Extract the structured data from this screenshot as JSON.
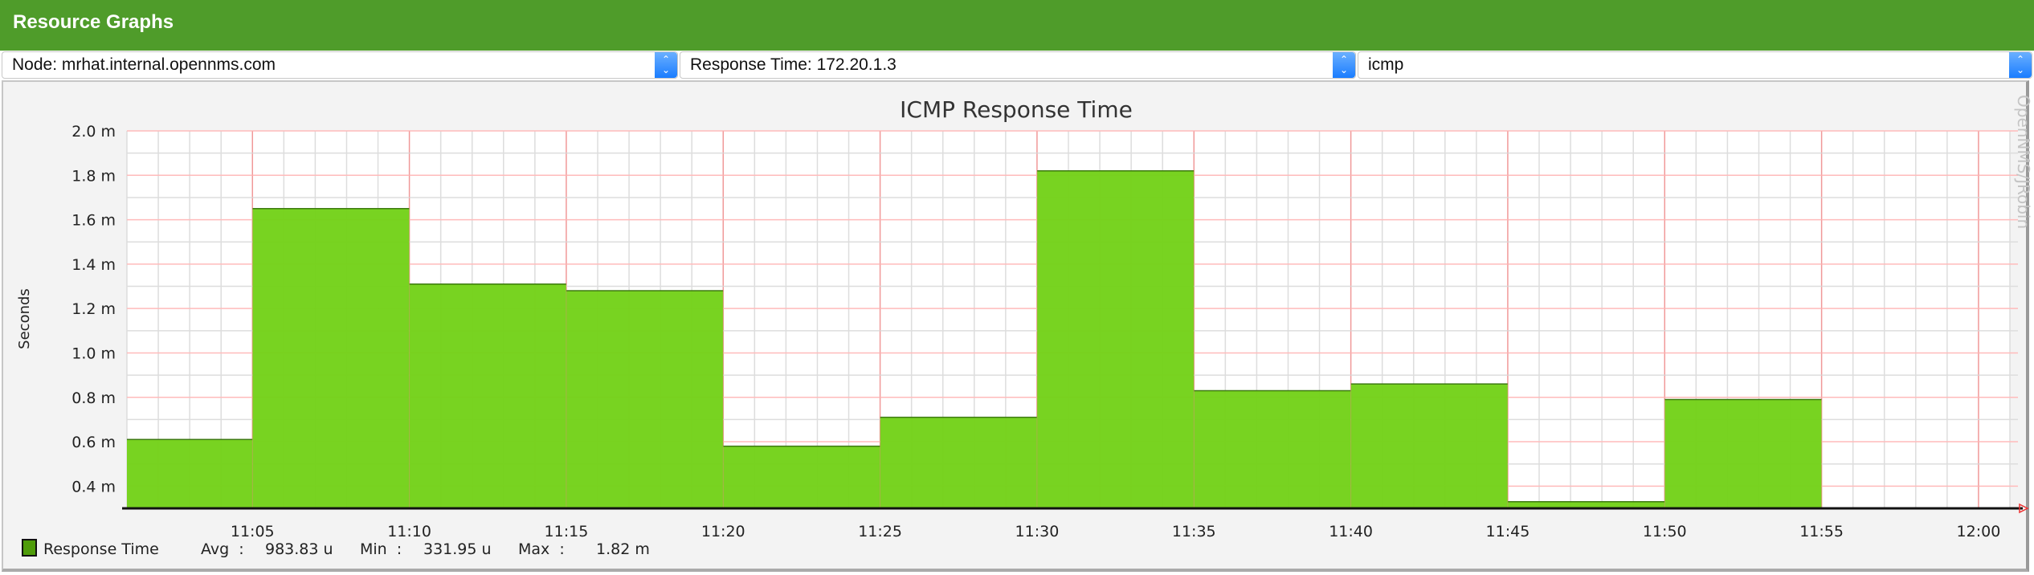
{
  "header": {
    "title": "Resource Graphs"
  },
  "selects": [
    {
      "value": "Node: mrhat.internal.opennms.com"
    },
    {
      "value": "Response Time: 172.20.1.3"
    },
    {
      "value": "icmp"
    }
  ],
  "watermark": "OpenNMS/JRobin",
  "chart_data": {
    "type": "area",
    "title": "ICMP Response Time",
    "ylabel": "Seconds",
    "xlabel": "",
    "ylim": [
      0.3,
      2.0
    ],
    "y_unit": "m",
    "yticks": [
      "0.4 m",
      "0.6 m",
      "0.8 m",
      "1.0 m",
      "1.2 m",
      "1.4 m",
      "1.6 m",
      "1.8 m",
      "2.0 m"
    ],
    "ytick_values": [
      0.4,
      0.6,
      0.8,
      1.0,
      1.2,
      1.4,
      1.6,
      1.8,
      2.0
    ],
    "xlim": [
      "11:01",
      "12:01"
    ],
    "xticks": [
      "11:05",
      "11:10",
      "11:15",
      "11:20",
      "11:25",
      "11:30",
      "11:35",
      "11:40",
      "11:45",
      "11:50",
      "11:55",
      "12:00"
    ],
    "grid": true,
    "series": [
      {
        "name": "Response Time",
        "color": "#74d21a",
        "steps": [
          {
            "start": "11:01",
            "end": "11:05",
            "value": 0.61
          },
          {
            "start": "11:05",
            "end": "11:10",
            "value": 1.65
          },
          {
            "start": "11:10",
            "end": "11:15",
            "value": 1.31
          },
          {
            "start": "11:15",
            "end": "11:20",
            "value": 1.28
          },
          {
            "start": "11:20",
            "end": "11:25",
            "value": 0.58
          },
          {
            "start": "11:25",
            "end": "11:30",
            "value": 0.71
          },
          {
            "start": "11:30",
            "end": "11:35",
            "value": 1.82
          },
          {
            "start": "11:35",
            "end": "11:40",
            "value": 0.83
          },
          {
            "start": "11:40",
            "end": "11:45",
            "value": 0.86
          },
          {
            "start": "11:45",
            "end": "11:50",
            "value": 0.33
          },
          {
            "start": "11:50",
            "end": "11:55",
            "value": 0.79
          }
        ]
      }
    ],
    "legend": {
      "position": "bottom-left",
      "label": "Response Time",
      "avg_label": "Avg  :",
      "avg": "983.83 u",
      "min_label": "Min  :",
      "min": "331.95 u",
      "max_label": "Max  :",
      "max": "1.82 m"
    }
  }
}
